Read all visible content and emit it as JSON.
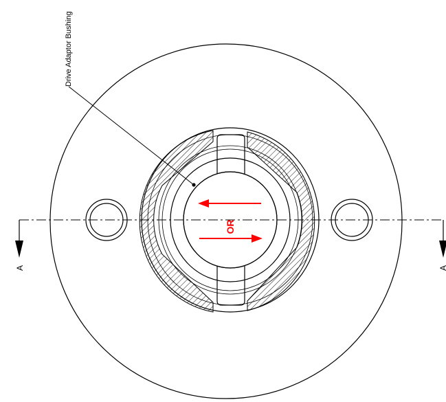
{
  "callout": {
    "label": "Drive Adaptor Bushing"
  },
  "center_mark": {
    "label": "OR"
  },
  "section": {
    "left_label": "A",
    "right_label": "A"
  },
  "colors": {
    "ink": "#000000",
    "direction_arrows": "#ff0000"
  }
}
